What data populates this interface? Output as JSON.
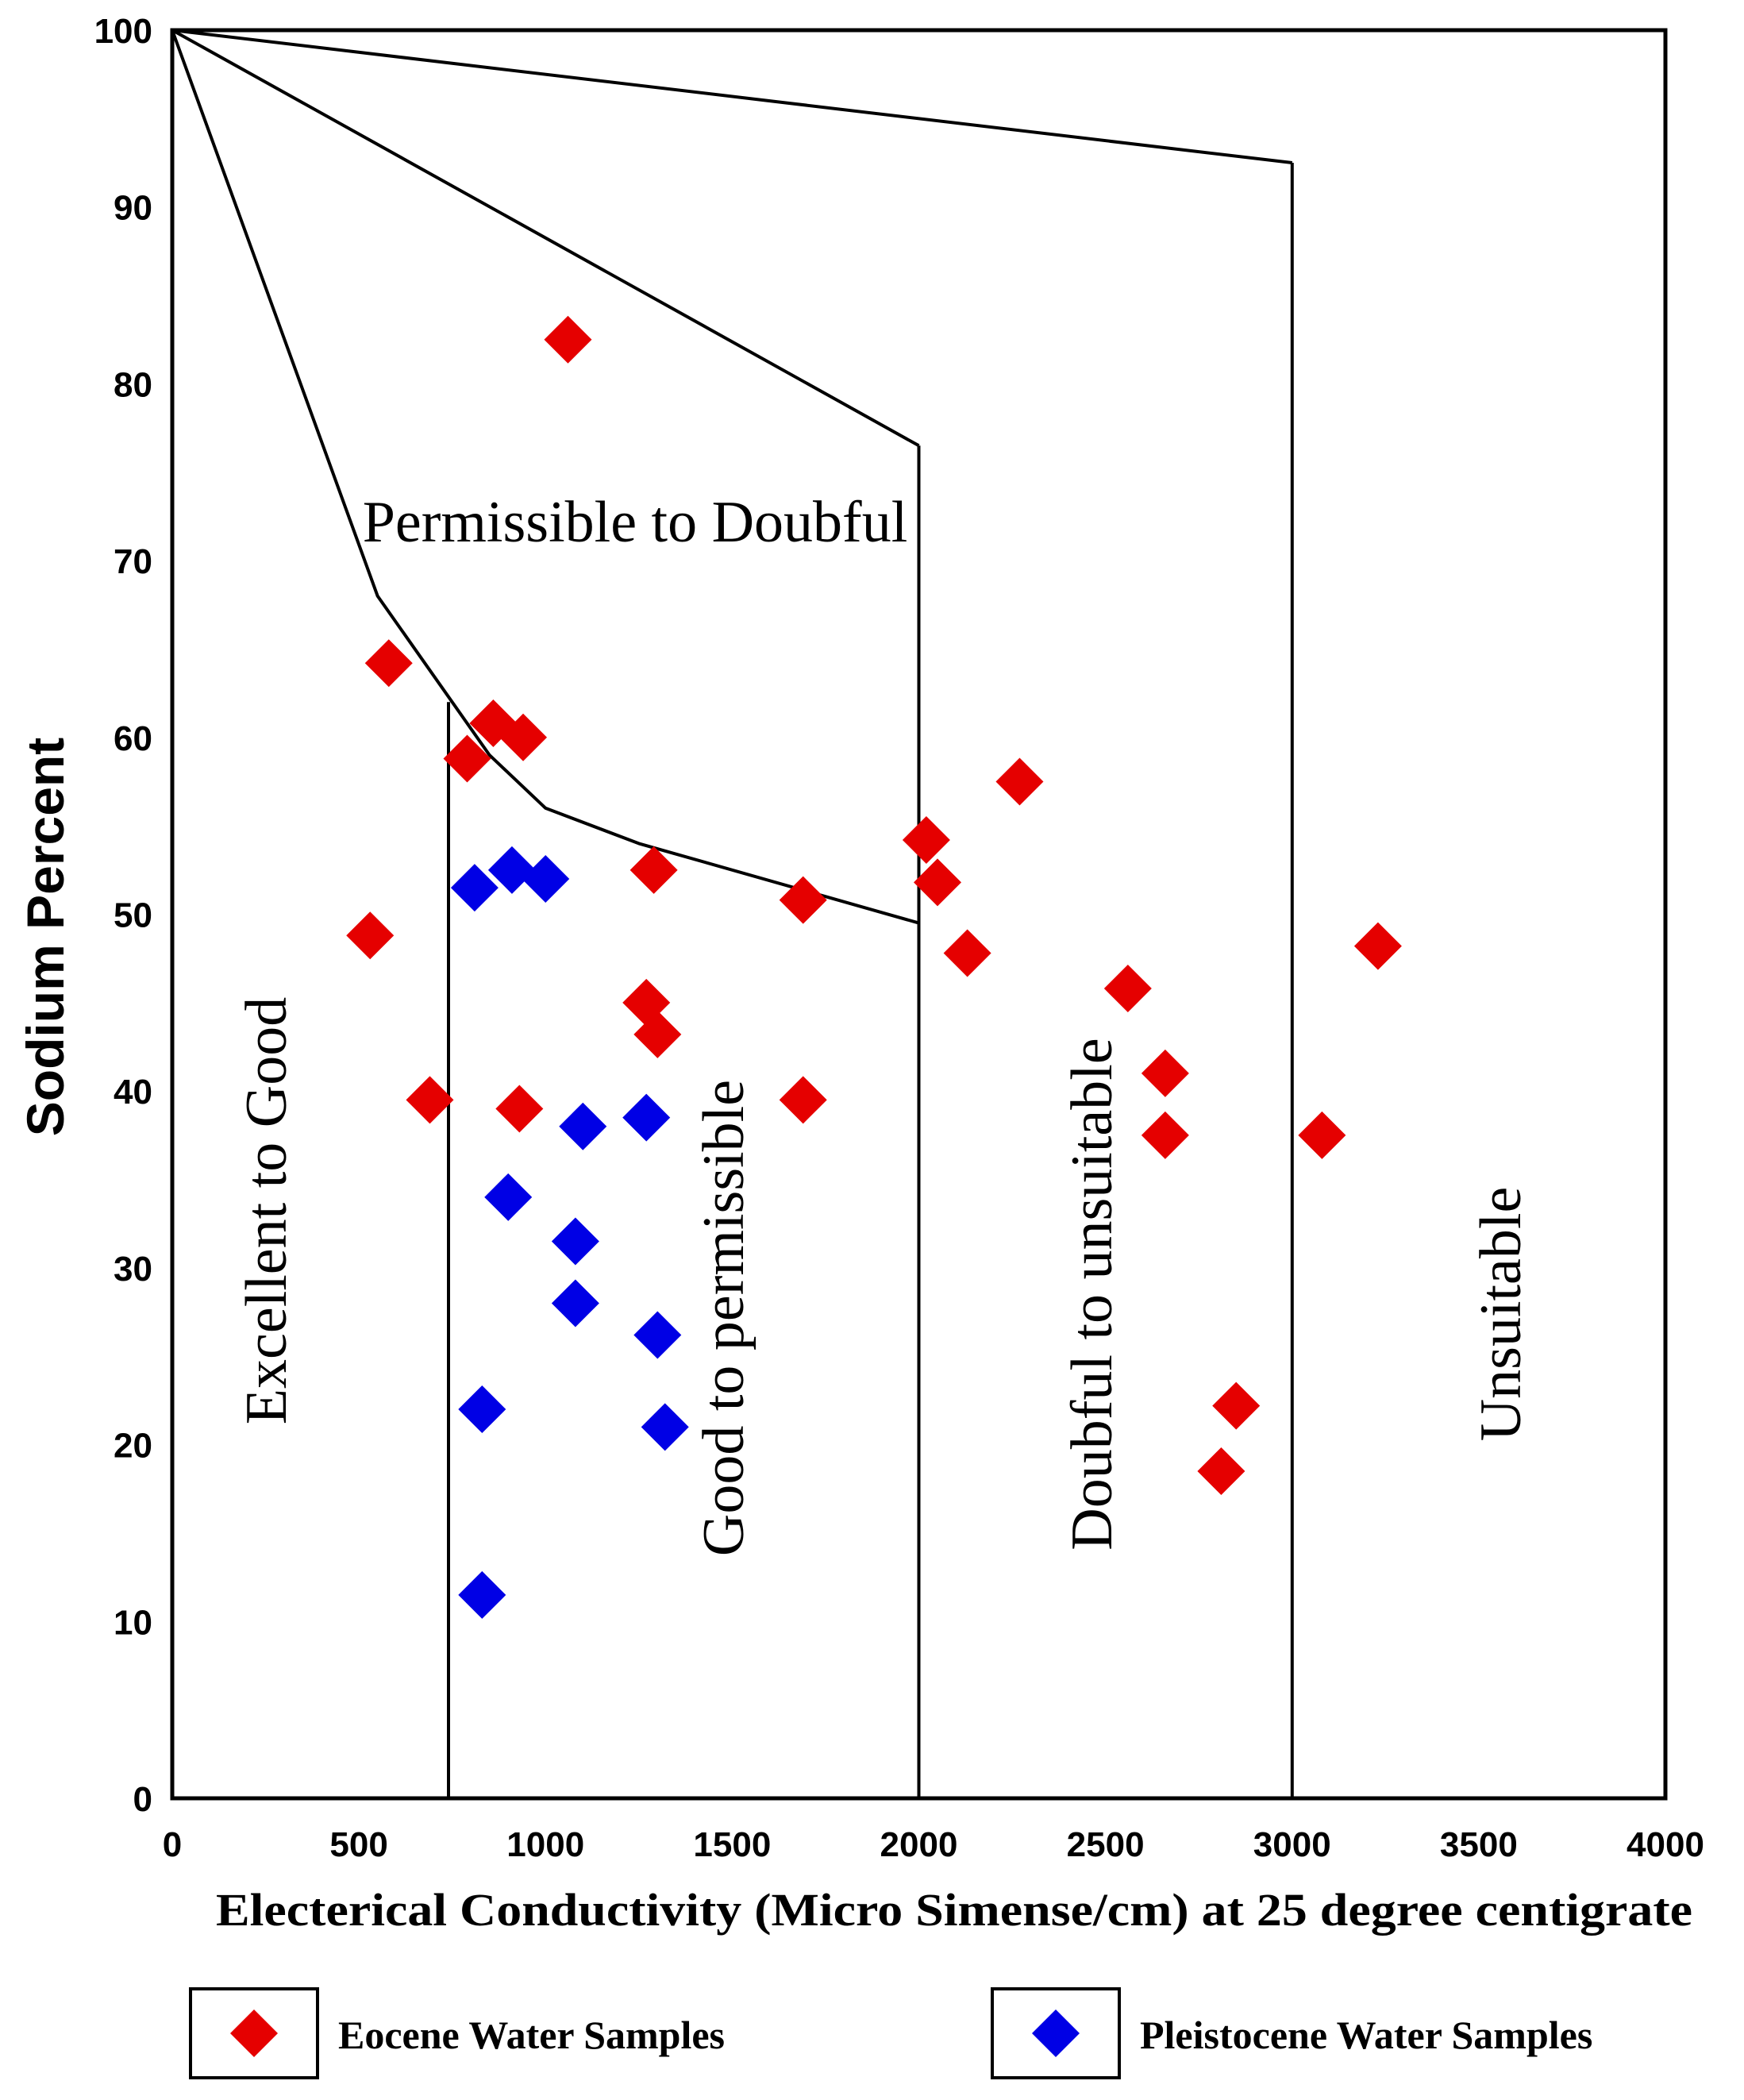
{
  "chart_data": {
    "type": "scatter",
    "title": "",
    "xlabel": "Electerical Conductivity (Micro Simense/cm) at 25 degree centigrate",
    "ylabel": "Sodium Percent",
    "xlim": [
      0,
      4000
    ],
    "ylim": [
      0,
      100
    ],
    "x_ticks": [
      "0",
      "500",
      "1000",
      "1500",
      "2000",
      "2500",
      "3000",
      "3500",
      "4000"
    ],
    "y_ticks": [
      "0",
      "10",
      "20",
      "30",
      "40",
      "50",
      "60",
      "70",
      "80",
      "90",
      "100"
    ],
    "regions": {
      "excellent": "Excellent to Good",
      "good": "Good to permissible",
      "permissible_doubtful": "Permissible to Doubful",
      "doubtful_unsuitable": "Doubful to unsuitable",
      "unsuitable": "Unsuitable"
    },
    "boundaries": [
      {
        "name": "excellent-upper",
        "points": [
          [
            0,
            100
          ],
          [
            550,
            68
          ],
          [
            850,
            59
          ],
          [
            1000,
            56
          ],
          [
            1250,
            54
          ],
          [
            1750,
            51
          ],
          [
            2000,
            49.5
          ]
        ]
      },
      {
        "name": "excellent-right",
        "points": [
          [
            740,
            62
          ],
          [
            740,
            0
          ]
        ]
      },
      {
        "name": "permissible-upper",
        "points": [
          [
            0,
            100
          ],
          [
            2000,
            76.5
          ]
        ]
      },
      {
        "name": "permissible-right",
        "points": [
          [
            2000,
            76.5
          ],
          [
            2000,
            0
          ]
        ]
      },
      {
        "name": "doubtful-upper",
        "points": [
          [
            0,
            100
          ],
          [
            3000,
            92.5
          ]
        ]
      },
      {
        "name": "doubtful-right",
        "points": [
          [
            3000,
            92.5
          ],
          [
            3000,
            0
          ]
        ]
      }
    ],
    "series": [
      {
        "name": "Eocene Water Samples",
        "color": "#e50000",
        "points": [
          [
            1060,
            82.5
          ],
          [
            580,
            64.2
          ],
          [
            860,
            60.8
          ],
          [
            940,
            60.0
          ],
          [
            790,
            58.8
          ],
          [
            2270,
            57.5
          ],
          [
            2020,
            54.2
          ],
          [
            2050,
            51.8
          ],
          [
            1290,
            52.5
          ],
          [
            1690,
            50.8
          ],
          [
            530,
            48.8
          ],
          [
            2130,
            47.8
          ],
          [
            3230,
            48.2
          ],
          [
            2560,
            45.8
          ],
          [
            1270,
            45.0
          ],
          [
            1300,
            43.2
          ],
          [
            2660,
            41.0
          ],
          [
            690,
            39.5
          ],
          [
            930,
            39.0
          ],
          [
            1690,
            39.5
          ],
          [
            2660,
            37.5
          ],
          [
            3080,
            37.5
          ],
          [
            2850,
            22.2
          ],
          [
            2810,
            18.5
          ]
        ]
      },
      {
        "name": "Pleistocene Water Samples",
        "color": "#0000e5",
        "points": [
          [
            910,
            52.5
          ],
          [
            1000,
            52.0
          ],
          [
            810,
            51.5
          ],
          [
            1100,
            38.0
          ],
          [
            1270,
            38.5
          ],
          [
            900,
            34.0
          ],
          [
            1080,
            31.5
          ],
          [
            1080,
            28.0
          ],
          [
            1300,
            26.2
          ],
          [
            830,
            22.0
          ],
          [
            1320,
            21.0
          ],
          [
            830,
            11.5
          ]
        ]
      }
    ]
  }
}
